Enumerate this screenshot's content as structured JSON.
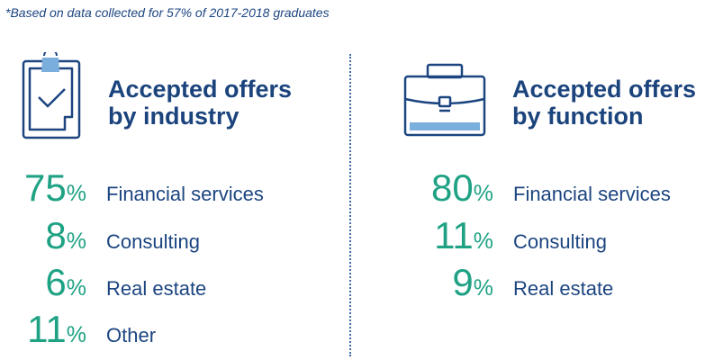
{
  "note": "*Based on data collected for 57% of 2017-2018 graduates",
  "colors": {
    "navy": "#1c4580",
    "teal": "#1fa284",
    "light_blue": "#7aaedc"
  },
  "industry": {
    "icon": "clipboard-check-icon",
    "title_line1": "Accepted offers",
    "title_line2": "by industry",
    "items": [
      {
        "value": "75",
        "unit": "%",
        "label": "Financial services"
      },
      {
        "value": "8",
        "unit": "%",
        "label": "Consulting"
      },
      {
        "value": "6",
        "unit": "%",
        "label": "Real estate"
      },
      {
        "value": "11",
        "unit": "%",
        "label": "Other"
      }
    ]
  },
  "function": {
    "icon": "briefcase-icon",
    "title_line1": "Accepted offers",
    "title_line2": "by function",
    "items": [
      {
        "value": "80",
        "unit": "%",
        "label": "Financial services"
      },
      {
        "value": "11",
        "unit": "%",
        "label": "Consulting"
      },
      {
        "value": "9",
        "unit": "%",
        "label": "Real estate"
      }
    ]
  }
}
